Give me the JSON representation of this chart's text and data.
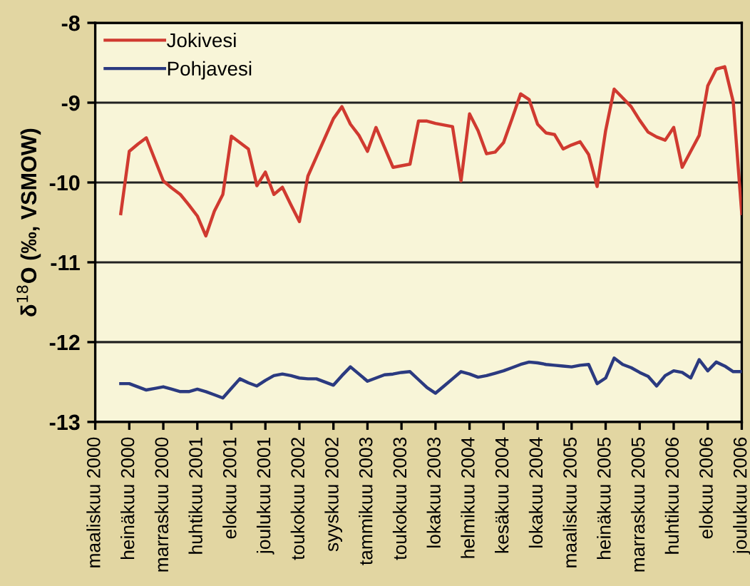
{
  "chart_data": {
    "type": "line",
    "ylabel": "δ$^{18}$O (‰, VSMOW)",
    "categories": [
      "maaliskuu 2000",
      null,
      null,
      null,
      "heinäkuu 2000",
      null,
      null,
      null,
      "marraskuu 2000",
      null,
      null,
      null,
      "huhtikuu 2001",
      null,
      null,
      null,
      "elokuu 2001",
      null,
      null,
      null,
      "joulukuu 2001",
      null,
      null,
      null,
      "toukokuu 2002",
      null,
      null,
      null,
      "syyskuu 2002",
      null,
      null,
      null,
      "tammikuu 2003",
      null,
      null,
      null,
      "toukokuu 2003",
      null,
      null,
      null,
      "lokakuu 2003",
      null,
      null,
      null,
      "helmikuu 2004",
      null,
      null,
      null,
      "kesäkuu 2004",
      null,
      null,
      null,
      "lokakuu 2004",
      null,
      null,
      null,
      "maaliskuu 2005",
      null,
      null,
      null,
      "heinäkuu 2005",
      null,
      null,
      null,
      "marraskuu 2005",
      null,
      null,
      null,
      "huhtikuu 2006",
      null,
      null,
      null,
      "elokuu 2006",
      null,
      null,
      null,
      "joulukuu 2006"
    ],
    "series": [
      {
        "name": "Jokivesi",
        "color": "#d03a30",
        "values": [
          null,
          null,
          null,
          -10.39,
          -9.61,
          -9.52,
          -9.44,
          -9.71,
          -9.98,
          -10.07,
          -10.15,
          -10.28,
          -10.42,
          -10.67,
          -10.36,
          -10.15,
          -9.42,
          -9.5,
          -9.58,
          -10.04,
          -9.87,
          -10.15,
          -10.06,
          -10.28,
          -10.49,
          -9.92,
          -9.68,
          -9.44,
          -9.2,
          -9.05,
          -9.27,
          -9.41,
          -9.61,
          -9.31,
          -9.56,
          -9.81,
          -9.79,
          -9.77,
          -9.23,
          -9.23,
          -9.26,
          -9.28,
          -9.3,
          -9.98,
          -9.14,
          -9.35,
          -9.64,
          -9.62,
          -9.5,
          -9.2,
          -8.89,
          -8.96,
          -9.27,
          -9.38,
          -9.4,
          -9.58,
          -9.53,
          -9.49,
          -9.65,
          -10.05,
          -9.35,
          -8.83,
          -8.94,
          -9.05,
          -9.22,
          -9.37,
          -9.43,
          -9.47,
          -9.31,
          -9.81,
          -9.61,
          -9.41,
          -8.79,
          -8.58,
          -8.55,
          -8.99,
          -10.39
        ]
      },
      {
        "name": "Pohjavesi",
        "color": "#2b3a80",
        "values": [
          null,
          null,
          null,
          -12.52,
          -12.52,
          -12.56,
          -12.6,
          -12.58,
          -12.56,
          -12.59,
          -12.62,
          -12.62,
          -12.59,
          -12.62,
          -12.66,
          -12.7,
          -12.58,
          -12.46,
          -12.51,
          -12.55,
          -12.48,
          -12.42,
          -12.4,
          -12.42,
          -12.45,
          -12.46,
          -12.46,
          -12.5,
          -12.54,
          -12.42,
          -12.31,
          -12.4,
          -12.49,
          -12.45,
          -12.41,
          -12.4,
          -12.38,
          -12.37,
          -12.47,
          -12.57,
          -12.64,
          -12.55,
          -12.46,
          -12.37,
          -12.4,
          -12.44,
          -12.42,
          -12.39,
          -12.36,
          -12.32,
          -12.28,
          -12.25,
          -12.26,
          -12.28,
          -12.29,
          -12.3,
          -12.31,
          -12.29,
          -12.28,
          -12.52,
          -12.45,
          -12.2,
          -12.28,
          -12.32,
          -12.38,
          -12.43,
          -12.55,
          -12.42,
          -12.36,
          -12.38,
          -12.45,
          -12.22,
          -12.36,
          -12.25,
          -12.3,
          -12.37,
          -12.37
        ]
      }
    ],
    "ylim": [
      -13,
      -8
    ],
    "yticks": [
      -13,
      -12,
      -11,
      -10,
      -9,
      -8
    ],
    "grid": "y",
    "legend": "top left",
    "marker": "none",
    "line_style": "solid"
  }
}
